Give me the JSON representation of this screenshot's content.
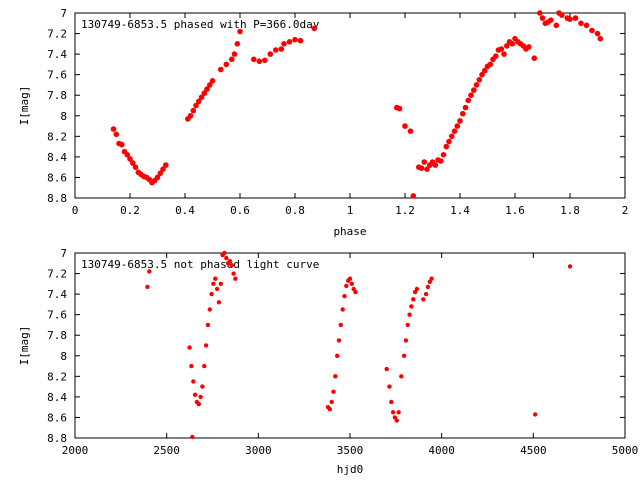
{
  "chart_data": [
    {
      "type": "scatter",
      "title": "130749-6853.5 phased with P=366.0day",
      "xlabel": "phase",
      "ylabel": "I[mag]",
      "xlim": [
        0,
        2
      ],
      "ylim": [
        8.8,
        7.0
      ],
      "y_inverted": true,
      "xticks": [
        0,
        0.2,
        0.4,
        0.6,
        0.8,
        1,
        1.2,
        1.4,
        1.6,
        1.8,
        2
      ],
      "yticks": [
        7,
        7.2,
        7.4,
        7.6,
        7.8,
        8,
        8.2,
        8.4,
        8.6,
        8.8
      ],
      "xtick_labels": [
        "0",
        "0.2",
        "0.4",
        "0.6",
        "0.8",
        "1",
        "1.2",
        "1.4",
        "1.6",
        "1.8",
        "2"
      ],
      "ytick_labels": [
        "7",
        "7.2",
        "7.4",
        "7.6",
        "7.8",
        "8",
        "8.2",
        "8.4",
        "8.6",
        "8.8"
      ],
      "grid": false,
      "marker_color": "#ff0000",
      "series": [
        {
          "x": [
            0.14,
            0.15,
            0.16,
            0.17,
            0.18,
            0.19,
            0.2,
            0.21,
            0.22,
            0.23,
            0.24,
            0.25,
            0.26,
            0.27,
            0.28,
            0.29,
            0.3,
            0.31,
            0.32,
            0.33,
            0.41,
            0.42,
            0.43,
            0.44,
            0.45,
            0.46,
            0.47,
            0.48,
            0.49,
            0.5,
            0.53,
            0.55,
            0.57,
            0.58,
            0.59,
            0.6,
            0.65,
            0.67,
            0.69,
            0.71,
            0.73,
            0.75,
            0.76,
            0.78,
            0.8,
            0.82,
            0.87,
            1.17,
            1.18,
            1.2,
            1.22,
            1.23,
            1.25,
            1.26,
            1.27,
            1.28,
            1.29,
            1.3,
            1.31,
            1.32,
            1.33,
            1.34,
            1.35,
            1.36,
            1.37,
            1.38,
            1.39,
            1.4,
            1.41,
            1.42,
            1.43,
            1.44,
            1.45,
            1.46,
            1.47,
            1.48,
            1.49,
            1.5,
            1.51,
            1.52,
            1.53,
            1.54,
            1.55,
            1.56,
            1.57,
            1.58,
            1.59,
            1.6,
            1.61,
            1.62,
            1.63,
            1.64,
            1.65,
            1.67,
            1.69,
            1.7,
            1.71,
            1.72,
            1.73,
            1.75,
            1.76,
            1.77,
            1.79,
            1.8,
            1.82,
            1.84,
            1.86,
            1.88,
            1.9,
            1.91
          ],
          "y": [
            8.13,
            8.18,
            8.27,
            8.28,
            8.35,
            8.38,
            8.42,
            8.46,
            8.5,
            8.55,
            8.57,
            8.59,
            8.6,
            8.62,
            8.65,
            8.63,
            8.6,
            8.56,
            8.52,
            8.48,
            8.03,
            8.0,
            7.95,
            7.9,
            7.86,
            7.82,
            7.78,
            7.74,
            7.7,
            7.66,
            7.55,
            7.5,
            7.45,
            7.4,
            7.3,
            7.18,
            7.45,
            7.47,
            7.46,
            7.4,
            7.36,
            7.35,
            7.3,
            7.28,
            7.26,
            7.27,
            7.15,
            7.92,
            7.93,
            8.1,
            8.15,
            8.78,
            8.5,
            8.51,
            8.45,
            8.52,
            8.48,
            8.45,
            8.48,
            8.43,
            8.44,
            8.38,
            8.3,
            8.25,
            8.2,
            8.15,
            8.1,
            8.05,
            7.98,
            7.92,
            7.85,
            7.8,
            7.75,
            7.7,
            7.65,
            7.6,
            7.56,
            7.52,
            7.5,
            7.45,
            7.42,
            7.36,
            7.35,
            7.4,
            7.32,
            7.28,
            7.3,
            7.25,
            7.28,
            7.3,
            7.32,
            7.35,
            7.33,
            7.44,
            7.0,
            7.05,
            7.1,
            7.09,
            7.07,
            7.12,
            7.0,
            7.02,
            7.05,
            7.06,
            7.05,
            7.1,
            7.12,
            7.17,
            7.2,
            7.25
          ]
        }
      ]
    },
    {
      "type": "scatter",
      "title": "130749-6853.5 not phased light curve",
      "xlabel": "hjd0",
      "ylabel": "I[mag]",
      "xlim": [
        2000,
        5000
      ],
      "ylim": [
        8.8,
        7.0
      ],
      "y_inverted": true,
      "xticks": [
        2000,
        2500,
        3000,
        3500,
        4000,
        4500,
        5000
      ],
      "yticks": [
        7,
        7.2,
        7.4,
        7.6,
        7.8,
        8,
        8.2,
        8.4,
        8.6,
        8.8
      ],
      "xtick_labels": [
        "2000",
        "2500",
        "3000",
        "3500",
        "4000",
        "4500",
        "5000"
      ],
      "ytick_labels": [
        "7",
        "7.2",
        "7.4",
        "7.6",
        "7.8",
        "8",
        "8.2",
        "8.4",
        "8.6",
        "8.8"
      ],
      "grid": false,
      "marker_color": "#ff0000",
      "series": [
        {
          "x": [
            2395,
            2405,
            2625,
            2635,
            2645,
            2655,
            2665,
            2675,
            2685,
            2695,
            2705,
            2715,
            2725,
            2735,
            2745,
            2755,
            2765,
            2775,
            2785,
            2795,
            2640,
            2805,
            2815,
            2825,
            2835,
            2845,
            2855,
            2865,
            2875,
            3380,
            3390,
            3400,
            3410,
            3420,
            3430,
            3440,
            3450,
            3460,
            3470,
            3480,
            3490,
            3500,
            3510,
            3520,
            3530,
            3700,
            3715,
            3725,
            3735,
            3745,
            3755,
            3765,
            3780,
            3795,
            3805,
            3815,
            3825,
            3835,
            3845,
            3855,
            3865,
            3900,
            3915,
            3925,
            3935,
            3945,
            4510,
            4700
          ],
          "y": [
            7.33,
            7.18,
            7.92,
            8.1,
            8.25,
            8.38,
            8.45,
            8.47,
            8.4,
            8.3,
            8.1,
            7.9,
            7.7,
            7.55,
            7.4,
            7.3,
            7.25,
            7.35,
            7.48,
            7.3,
            8.79,
            7.02,
            7.0,
            7.05,
            7.1,
            7.08,
            7.12,
            7.2,
            7.25,
            8.5,
            8.52,
            8.45,
            8.35,
            8.2,
            8.0,
            7.85,
            7.7,
            7.55,
            7.42,
            7.32,
            7.27,
            7.25,
            7.3,
            7.35,
            7.38,
            8.13,
            8.3,
            8.45,
            8.55,
            8.6,
            8.63,
            8.55,
            8.2,
            8.0,
            7.85,
            7.7,
            7.6,
            7.52,
            7.45,
            7.38,
            7.35,
            7.45,
            7.4,
            7.33,
            7.28,
            7.25,
            8.57,
            7.13
          ]
        }
      ]
    }
  ]
}
